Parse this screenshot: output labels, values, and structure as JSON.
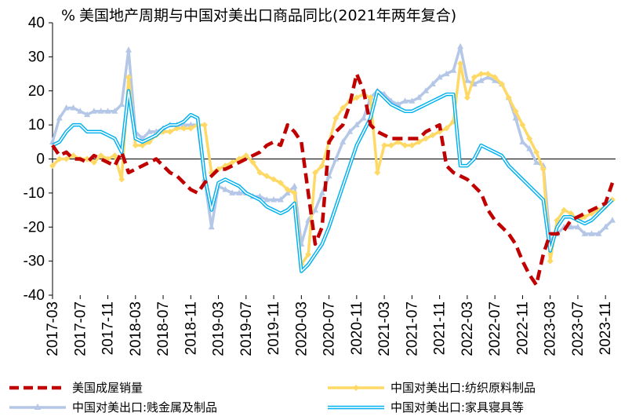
{
  "chart_data": {
    "type": "line",
    "title": "美国地产周期与中国对美出口商品同比(2021年两年复合)",
    "ylabel_unit": "%",
    "ylim": [
      -40,
      40
    ],
    "yticks": [
      -40,
      -30,
      -20,
      -10,
      0,
      10,
      20,
      30,
      40
    ],
    "grid": false,
    "legend_position": "bottom",
    "x": [
      "2017-03",
      "2017-04",
      "2017-05",
      "2017-06",
      "2017-07",
      "2017-08",
      "2017-09",
      "2017-10",
      "2017-11",
      "2017-12",
      "2018-01",
      "2018-02",
      "2018-03",
      "2018-04",
      "2018-05",
      "2018-06",
      "2018-07",
      "2018-08",
      "2018-09",
      "2018-10",
      "2018-11",
      "2018-12",
      "2019-01",
      "2019-02",
      "2019-03",
      "2019-04",
      "2019-05",
      "2019-06",
      "2019-07",
      "2019-08",
      "2019-09",
      "2019-10",
      "2019-11",
      "2019-12",
      "2020-01",
      "2020-02",
      "2020-03",
      "2020-04",
      "2020-05",
      "2020-06",
      "2020-07",
      "2020-08",
      "2020-09",
      "2020-10",
      "2020-11",
      "2020-12",
      "2021-01",
      "2021-02",
      "2021-03",
      "2021-04",
      "2021-05",
      "2021-06",
      "2021-07",
      "2021-08",
      "2021-09",
      "2021-10",
      "2021-11",
      "2021-12",
      "2022-01",
      "2022-02",
      "2022-03",
      "2022-04",
      "2022-05",
      "2022-06",
      "2022-07",
      "2022-08",
      "2022-09",
      "2022-10",
      "2022-11",
      "2022-12",
      "2023-01",
      "2023-02",
      "2023-03",
      "2023-04",
      "2023-05",
      "2023-06",
      "2023-07",
      "2023-08",
      "2023-09",
      "2023-10",
      "2023-11",
      "2023-12"
    ],
    "xtick_labels": [
      "2017-03",
      "2017-07",
      "2017-11",
      "2018-03",
      "2018-07",
      "2018-11",
      "2019-03",
      "2019-07",
      "2019-11",
      "2020-03",
      "2020-07",
      "2020-11",
      "2021-03",
      "2021-07",
      "2021-11",
      "2022-03",
      "2022-07",
      "2022-11",
      "2023-03",
      "2023-07",
      "2023-11"
    ],
    "series": [
      {
        "name": "美国成屋销量",
        "color": "#c00000",
        "style": "dashed",
        "values": [
          4,
          1,
          2,
          0,
          0,
          -1,
          1,
          0,
          -1,
          -2,
          2,
          -4,
          -3,
          -2,
          -1,
          0,
          -2,
          -4,
          -5,
          -7,
          -9,
          -10,
          -7,
          -5,
          -3,
          -3,
          -2,
          -1,
          0,
          1,
          2,
          4,
          5,
          4,
          10,
          8,
          5,
          -10,
          -25,
          -20,
          5,
          8,
          10,
          16,
          25,
          20,
          10,
          8,
          7,
          6,
          6,
          6,
          6,
          6,
          8,
          9,
          10,
          -2,
          -4,
          -5,
          -6,
          -8,
          -10,
          -15,
          -18,
          -20,
          -22,
          -25,
          -30,
          -34,
          -37,
          -28,
          -22,
          -22,
          -21,
          -18,
          -17,
          -16,
          -15,
          -14,
          -13,
          -7
        ]
      },
      {
        "name": "中国对美出口:纺织原料制品",
        "color": "#ffd966",
        "style": "line-marker",
        "values": [
          -2,
          0,
          0,
          1,
          0,
          0,
          -1,
          1,
          0,
          1,
          -6,
          24,
          4,
          4,
          5,
          7,
          8,
          8,
          9,
          9,
          9,
          10,
          10,
          -4,
          -3,
          -2,
          -1,
          0,
          1,
          -1,
          -4,
          -5,
          -6,
          -7,
          -9,
          -10,
          -31,
          -28,
          -4,
          -2,
          5,
          12,
          15,
          17,
          18,
          19,
          18,
          -4,
          4,
          4,
          5,
          4,
          4,
          5,
          6,
          7,
          8,
          9,
          11,
          28,
          18,
          24,
          25,
          25,
          24,
          22,
          18,
          14,
          10,
          6,
          2,
          -3,
          -30,
          -18,
          -15,
          -16,
          -18,
          -17,
          -16,
          -15,
          -14,
          -12
        ]
      },
      {
        "name": "中国对美出口:贱金属及制品",
        "color": "#b4c7e7",
        "style": "line-marker",
        "values": [
          5,
          12,
          15,
          15,
          14,
          13,
          14,
          14,
          14,
          14,
          16,
          32,
          8,
          6,
          8,
          8,
          9,
          10,
          10,
          10,
          10,
          10,
          -6,
          -20,
          -8,
          -9,
          -10,
          -10,
          -10,
          -11,
          -11,
          -12,
          -12,
          -12,
          -10,
          -8,
          -25,
          -18,
          -15,
          -10,
          -5,
          0,
          5,
          8,
          10,
          12,
          18,
          20,
          19,
          17,
          16,
          17,
          17,
          18,
          20,
          22,
          24,
          25,
          26,
          33,
          23,
          22,
          23,
          24,
          23,
          22,
          18,
          12,
          5,
          3,
          -1,
          -2,
          -24,
          -22,
          -20,
          -20,
          -20,
          -22,
          -22,
          -22,
          -20,
          -18
        ]
      },
      {
        "name": "中国对美出口:家具寝具等",
        "color": "#00b0f0",
        "style": "double-line",
        "values": [
          4,
          5,
          8,
          10,
          10,
          8,
          8,
          8,
          7,
          6,
          2,
          20,
          6,
          5,
          6,
          7,
          9,
          10,
          10,
          11,
          13,
          12,
          -5,
          -15,
          -7,
          -6,
          -7,
          -8,
          -10,
          -11,
          -12,
          -14,
          -15,
          -16,
          -15,
          -13,
          -33,
          -31,
          -28,
          -25,
          -20,
          -14,
          -8,
          -2,
          4,
          8,
          12,
          20,
          18,
          16,
          15,
          14,
          14,
          15,
          16,
          17,
          18,
          19,
          19,
          -2,
          -2,
          0,
          4,
          3,
          2,
          1,
          -2,
          -4,
          -6,
          -8,
          -10,
          -12,
          -27,
          -20,
          -17,
          -17,
          -18,
          -19,
          -18,
          -16,
          -14,
          -12
        ]
      }
    ]
  }
}
